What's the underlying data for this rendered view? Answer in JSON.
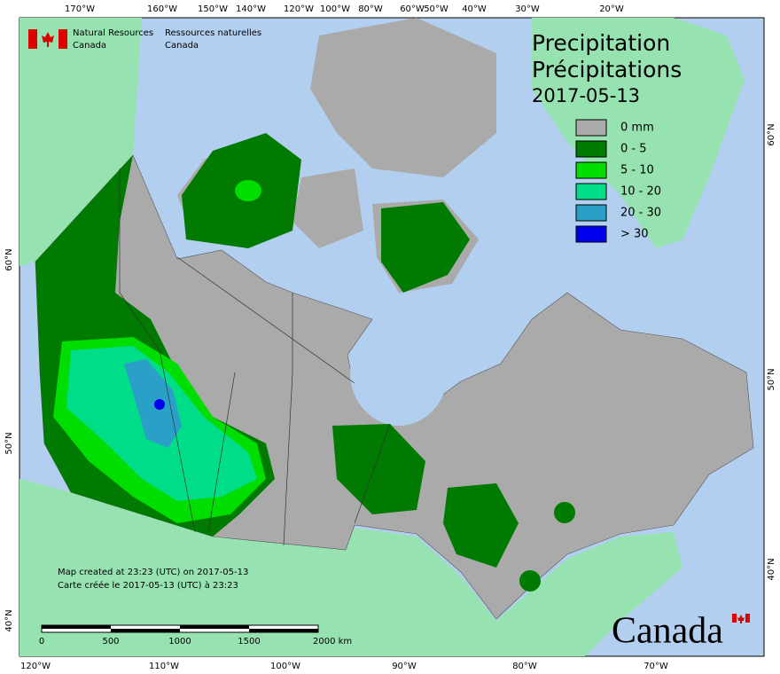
{
  "header": {
    "org_en": [
      "Natural Resources",
      "Canada"
    ],
    "org_fr": [
      "Ressources naturelles",
      "Canada"
    ]
  },
  "title": {
    "en": "Precipitation",
    "fr": "Précipitations",
    "date": "2017-05-13"
  },
  "legend": [
    {
      "label": "0 mm",
      "color": "#aaaaaa"
    },
    {
      "label": "0 - 5",
      "color": "#007a00"
    },
    {
      "label": "5 - 10",
      "color": "#00dd00"
    },
    {
      "label": "10 - 20",
      "color": "#00dd88"
    },
    {
      "label": "20 - 30",
      "color": "#2aa0c8"
    },
    {
      "label": "> 30",
      "color": "#0000ee"
    }
  ],
  "graticule": {
    "top": [
      "170°W",
      "160°W",
      "150°W",
      "140°W",
      "120°W",
      "100°W",
      "80°W",
      "60°W",
      "50°W",
      "40°W",
      "30°W",
      "20°W"
    ],
    "bottom": [
      "120°W",
      "110°W",
      "100°W",
      "90°W",
      "80°W",
      "70°W"
    ],
    "left": [
      "60°N",
      "50°N",
      "40°N"
    ],
    "right": [
      "60°N",
      "50°N",
      "40°N"
    ]
  },
  "footer": [
    "Map created at 23:23 (UTC) on 2017-05-13",
    "Carte créée le 2017-05-13 (UTC) à 23:23"
  ],
  "scale_bar": [
    "0",
    "500",
    "1000",
    "1500",
    "2000 km"
  ],
  "wordmark": "Canada"
}
